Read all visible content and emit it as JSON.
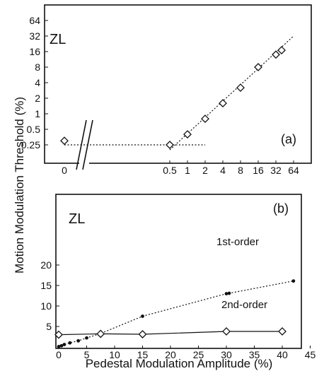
{
  "figure": {
    "ylabel": "Motion Modulation Threshold (%)",
    "xlabel": "Pedestal Modulation Amplitude (%)"
  },
  "chart_data": [
    {
      "type": "scatter",
      "panel_label": "(a)",
      "subject": "ZL",
      "x_scale": "log2",
      "y_scale": "log2",
      "x_break_tick": "0",
      "x_ticks": [
        "0.5",
        "1",
        "2",
        "4",
        "8",
        "16",
        "32",
        "64"
      ],
      "y_ticks": [
        "0.25",
        "0.5",
        "1",
        "2",
        "4",
        "8",
        "16",
        "32",
        "64"
      ],
      "axis_break": true,
      "series": [
        {
          "marker": "diamond-open",
          "points": [
            {
              "x": 0,
              "y": 0.3
            },
            {
              "x": 0.5,
              "y": 0.25
            },
            {
              "x": 1,
              "y": 0.4
            },
            {
              "x": 2,
              "y": 0.8
            },
            {
              "x": 4,
              "y": 1.6
            },
            {
              "x": 8,
              "y": 3.2
            },
            {
              "x": 16,
              "y": 8
            },
            {
              "x": 32,
              "y": 14
            },
            {
              "x": 40,
              "y": 17
            }
          ]
        }
      ],
      "fit_lines": [
        {
          "style": "dotted",
          "from": {
            "x": 0,
            "y": 0.25
          },
          "to": {
            "x": 2,
            "y": 0.25
          }
        },
        {
          "style": "dotted",
          "from": {
            "x": 0.5,
            "y": 0.2
          },
          "to": {
            "x": 64,
            "y": 32
          }
        }
      ]
    },
    {
      "type": "line",
      "panel_label": "(b)",
      "subject": "ZL",
      "xlim": [
        0,
        45
      ],
      "ylim": [
        0,
        25
      ],
      "x_ticks": [
        "0",
        "5",
        "10",
        "15",
        "20",
        "25",
        "30",
        "35",
        "40",
        "45"
      ],
      "y_ticks": [
        "5",
        "10",
        "15",
        "20"
      ],
      "series": [
        {
          "name": "1st-order",
          "marker": "dot-filled",
          "line": "dotted",
          "x": [
            0,
            0.5,
            1,
            2,
            3.5,
            5,
            7.5,
            15,
            30,
            30.5,
            42
          ],
          "y": [
            0.1,
            0.3,
            0.6,
            1.0,
            1.5,
            2.2,
            3.3,
            7.5,
            13.0,
            13.1,
            16.1
          ]
        },
        {
          "name": "2nd-order",
          "marker": "diamond-open",
          "line": "solid",
          "x": [
            0,
            7.5,
            15,
            30,
            40
          ],
          "y": [
            3.0,
            3.2,
            3.1,
            3.8,
            3.8
          ]
        }
      ]
    }
  ]
}
